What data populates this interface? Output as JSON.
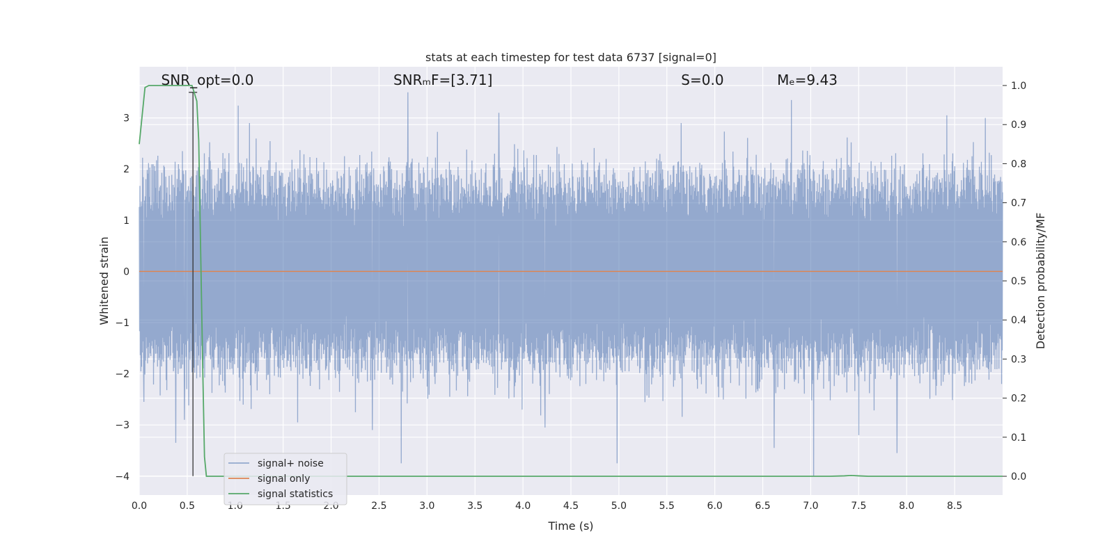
{
  "chart_data": {
    "type": "line",
    "title": "stats at each timestep for test data 6737 [signal=0]",
    "xlabel": "Time (s)",
    "ylabel": "Whitened strain",
    "y2label": "Detection probability/MF",
    "xlim": [
      0.0,
      9.0
    ],
    "ylim": [
      -4.37,
      4.0
    ],
    "y2lim": [
      -0.048,
      1.048
    ],
    "xticks": [
      0.0,
      0.5,
      1.0,
      1.5,
      2.0,
      2.5,
      3.0,
      3.5,
      4.0,
      4.5,
      5.0,
      5.5,
      6.0,
      6.5,
      7.0,
      7.5,
      8.0,
      8.5
    ],
    "xtick_labels": [
      "0.0",
      "0.5",
      "1.0",
      "1.5",
      "2.0",
      "2.5",
      "3.0",
      "3.5",
      "4.0",
      "4.5",
      "5.0",
      "5.5",
      "6.0",
      "6.5",
      "7.0",
      "7.5",
      "8.0",
      "8.5"
    ],
    "yticks": [
      -4,
      -3,
      -2,
      -1,
      0,
      1,
      2,
      3
    ],
    "ytick_labels": [
      "−4",
      "−3",
      "−2",
      "−1",
      "0",
      "1",
      "2",
      "3"
    ],
    "y2ticks": [
      0.0,
      0.1,
      0.2,
      0.3,
      0.4,
      0.5,
      0.6,
      0.7,
      0.8,
      0.9,
      1.0
    ],
    "y2tick_labels": [
      "0.0",
      "0.1",
      "0.2",
      "0.3",
      "0.4",
      "0.5",
      "0.6",
      "0.7",
      "0.8",
      "0.9",
      "1.0"
    ],
    "grid": true,
    "legend_position": "lower-left",
    "annotations": [
      {
        "label": "SNR_opt=0.0",
        "x": 0.2
      },
      {
        "label": "SNRₘF=[3.71]",
        "x": 2.62
      },
      {
        "label": "S=0.0",
        "x": 5.62
      },
      {
        "label": "Mₑ=9.43",
        "x": 6.62
      }
    ],
    "series": [
      {
        "name": "signal+ noise",
        "axis": "left",
        "color": "#4c72b0",
        "opacity": 0.55,
        "description_note": "whitened noise, approx. |y| envelope 1.3 to 3.6",
        "spikes": [
          {
            "x": 0.38,
            "y": -3.35
          },
          {
            "x": 0.47,
            "y": -2.9
          },
          {
            "x": 0.05,
            "y": -2.55
          },
          {
            "x": 1.03,
            "y": 3.24
          },
          {
            "x": 1.15,
            "y": 2.9
          },
          {
            "x": 1.65,
            "y": -2.95
          },
          {
            "x": 2.43,
            "y": -3.1
          },
          {
            "x": 2.73,
            "y": -3.75
          },
          {
            "x": 2.8,
            "y": 3.5
          },
          {
            "x": 3.75,
            "y": 3.1
          },
          {
            "x": 4.23,
            "y": -3.05
          },
          {
            "x": 4.98,
            "y": -3.75
          },
          {
            "x": 5.65,
            "y": 2.9
          },
          {
            "x": 6.62,
            "y": -3.45
          },
          {
            "x": 6.8,
            "y": 3.35
          },
          {
            "x": 7.03,
            "y": -4.0
          },
          {
            "x": 7.5,
            "y": -3.2
          },
          {
            "x": 7.9,
            "y": -3.55
          },
          {
            "x": 8.42,
            "y": 3.05
          },
          {
            "x": 8.82,
            "y": 3.0
          }
        ]
      },
      {
        "name": "signal only",
        "axis": "left",
        "color": "#dd8452",
        "x": [
          0.0,
          9.0
        ],
        "y": [
          0.0,
          0.0
        ]
      },
      {
        "name": "signal statistics",
        "axis": "right",
        "color": "#55a868",
        "x": [
          0.0,
          0.06,
          0.1,
          0.5,
          0.55,
          0.6,
          0.62,
          0.66,
          0.68,
          0.7,
          7.2,
          7.35,
          7.42,
          7.5,
          7.6,
          9.0
        ],
        "y": [
          0.85,
          0.995,
          1.0,
          1.0,
          1.0,
          0.96,
          0.86,
          0.3,
          0.05,
          0.0,
          0.0,
          0.001,
          0.002,
          0.001,
          0.0,
          0.0
        ]
      }
    ],
    "vertical_marker": {
      "x": 0.56,
      "y_bottom": -4.0,
      "y_top": 3.5
    }
  }
}
